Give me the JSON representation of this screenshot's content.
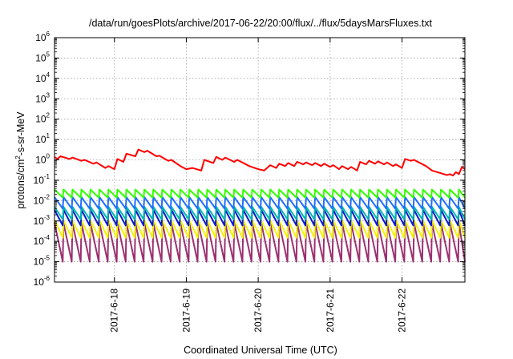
{
  "chart_data": {
    "type": "line",
    "title": "/data/run/goesPlots/archive/2017-06-22/20:00/flux/../flux/5daysMarsFluxes.txt",
    "xlabel": "Coordinated Universal Time (UTC)",
    "ylabel_base": "protons/cm",
    "ylabel_sup": "2",
    "ylabel_rest": "-s-sr-MeV",
    "ylabel": "protons/cm2-s-sr-MeV",
    "yscale": "log",
    "ylim": [
      1e-06,
      1000000.0
    ],
    "yticks": [
      {
        "base": "10",
        "exp": "-6"
      },
      {
        "base": "10",
        "exp": "-5"
      },
      {
        "base": "10",
        "exp": "-4"
      },
      {
        "base": "10",
        "exp": "-3"
      },
      {
        "base": "10",
        "exp": "-2"
      },
      {
        "base": "10",
        "exp": "-1"
      },
      {
        "base": "10",
        "exp": "0"
      },
      {
        "base": "10",
        "exp": "1"
      },
      {
        "base": "10",
        "exp": "2"
      },
      {
        "base": "10",
        "exp": "3"
      },
      {
        "base": "10",
        "exp": "4"
      },
      {
        "base": "10",
        "exp": "5"
      },
      {
        "base": "10",
        "exp": "6"
      }
    ],
    "xlim": [
      "2017-06-17 04:00",
      "2017-06-22 21:00"
    ],
    "xticks": [
      "2017-6-18",
      "2017-6-19",
      "2017-6-20",
      "2017-6-21",
      "2017-6-22"
    ],
    "grid": true,
    "legend": "none",
    "series": [
      {
        "color": "#ff0000",
        "kind": "ramp",
        "points": [
          [
            "2017-06-17 04:00",
            1.4
          ],
          [
            "2017-06-17 05:00",
            1.1
          ],
          [
            "2017-06-17 06:00",
            1.5
          ],
          [
            "2017-06-17 09:00",
            1.1
          ],
          [
            "2017-06-17 10:00",
            1.3
          ],
          [
            "2017-06-17 13:00",
            0.9
          ],
          [
            "2017-06-17 14:00",
            1.0
          ],
          [
            "2017-06-17 17:00",
            0.65
          ],
          [
            "2017-06-17 18:00",
            0.75
          ],
          [
            "2017-06-17 21:00",
            0.4
          ],
          [
            "2017-06-17 22:00",
            0.5
          ],
          [
            "2017-06-18 00:00",
            0.35
          ],
          [
            "2017-06-18 01:00",
            1.1
          ],
          [
            "2017-06-18 03:00",
            0.8
          ],
          [
            "2017-06-18 04:00",
            2.0
          ],
          [
            "2017-06-18 07:00",
            1.5
          ],
          [
            "2017-06-18 08:00",
            3.2
          ],
          [
            "2017-06-18 10:00",
            2.4
          ],
          [
            "2017-06-18 11:00",
            2.8
          ],
          [
            "2017-06-18 14:00",
            1.5
          ],
          [
            "2017-06-18 15:00",
            1.6
          ],
          [
            "2017-06-18 18:00",
            0.9
          ],
          [
            "2017-06-18 19:00",
            1.0
          ],
          [
            "2017-06-18 22:00",
            0.5
          ],
          [
            "2017-06-19 00:00",
            0.35
          ],
          [
            "2017-06-19 02:00",
            0.4
          ],
          [
            "2017-06-19 05:00",
            0.3
          ],
          [
            "2017-06-19 06:00",
            1.0
          ],
          [
            "2017-06-19 09:00",
            0.7
          ],
          [
            "2017-06-19 10:00",
            1.4
          ],
          [
            "2017-06-19 12:00",
            1.0
          ],
          [
            "2017-06-19 13:00",
            1.3
          ],
          [
            "2017-06-19 16:00",
            0.8
          ],
          [
            "2017-06-19 17:00",
            1.0
          ],
          [
            "2017-06-19 21:00",
            0.5
          ],
          [
            "2017-06-20 00:00",
            0.35
          ],
          [
            "2017-06-20 02:00",
            0.3
          ],
          [
            "2017-06-20 04:00",
            0.55
          ],
          [
            "2017-06-20 06:00",
            0.4
          ],
          [
            "2017-06-20 07:00",
            0.65
          ],
          [
            "2017-06-20 09:00",
            0.5
          ],
          [
            "2017-06-20 10:00",
            0.7
          ],
          [
            "2017-06-20 12:00",
            0.5
          ],
          [
            "2017-06-20 13:00",
            0.8
          ],
          [
            "2017-06-20 15:00",
            0.6
          ],
          [
            "2017-06-20 16:00",
            0.75
          ],
          [
            "2017-06-20 18:00",
            0.55
          ],
          [
            "2017-06-20 19:00",
            0.7
          ],
          [
            "2017-06-20 21:00",
            0.5
          ],
          [
            "2017-06-20 22:00",
            0.65
          ],
          [
            "2017-06-21 00:00",
            0.45
          ],
          [
            "2017-06-21 01:00",
            0.55
          ],
          [
            "2017-06-21 03:00",
            0.35
          ],
          [
            "2017-06-21 04:00",
            0.5
          ],
          [
            "2017-06-21 06:00",
            0.35
          ],
          [
            "2017-06-21 07:00",
            0.45
          ],
          [
            "2017-06-21 09:00",
            0.3
          ],
          [
            "2017-06-21 10:00",
            0.8
          ],
          [
            "2017-06-21 12:00",
            0.6
          ],
          [
            "2017-06-21 13:00",
            0.9
          ],
          [
            "2017-06-21 15:00",
            0.65
          ],
          [
            "2017-06-21 16:00",
            0.85
          ],
          [
            "2017-06-21 18:00",
            0.6
          ],
          [
            "2017-06-21 19:00",
            0.75
          ],
          [
            "2017-06-21 21:00",
            0.5
          ],
          [
            "2017-06-21 22:00",
            0.6
          ],
          [
            "2017-06-22 00:00",
            0.4
          ],
          [
            "2017-06-22 01:00",
            1.1
          ],
          [
            "2017-06-22 03:00",
            0.9
          ],
          [
            "2017-06-22 04:00",
            1.0
          ],
          [
            "2017-06-22 08:00",
            0.5
          ],
          [
            "2017-06-22 10:00",
            0.3
          ],
          [
            "2017-06-22 13:00",
            0.22
          ],
          [
            "2017-06-22 15:00",
            0.18
          ],
          [
            "2017-06-22 16:00",
            0.2
          ],
          [
            "2017-06-22 17:00",
            0.17
          ],
          [
            "2017-06-22 18:00",
            0.25
          ],
          [
            "2017-06-22 19:00",
            0.2
          ],
          [
            "2017-06-22 20:00",
            0.45
          ],
          [
            "2017-06-22 21:00",
            0.35
          ]
        ]
      },
      {
        "color": "#33ff00",
        "kind": "sawtooth",
        "start": "2017-06-17 04:00",
        "end": "2017-06-22 21:00",
        "period_hours": 3,
        "high": 0.035,
        "low": 0.014
      },
      {
        "color": "#1f6fff",
        "kind": "sawtooth",
        "start": "2017-06-17 04:00",
        "end": "2017-06-22 21:00",
        "period_hours": 3,
        "high": 0.015,
        "low": 0.004
      },
      {
        "color": "#00b8b0",
        "kind": "sawtooth",
        "start": "2017-06-17 04:00",
        "end": "2017-06-22 21:00",
        "period_hours": 3,
        "high": 0.005,
        "low": 0.0012
      },
      {
        "color": "#0a1acc",
        "kind": "sawtooth",
        "start": "2017-06-17 04:00",
        "end": "2017-06-22 21:00",
        "period_hours": 3,
        "high": 0.0035,
        "low": 0.0006
      },
      {
        "color": "#f2f20a",
        "kind": "sawtooth",
        "start": "2017-06-17 04:00",
        "end": "2017-06-22 21:00",
        "period_hours": 3,
        "high": 0.0011,
        "low": 0.00015
      },
      {
        "color": "#9c3070",
        "kind": "sawtooth",
        "start": "2017-06-17 04:00",
        "end": "2017-06-22 21:00",
        "period_hours": 3,
        "high": 0.0008,
        "low": 1e-05
      }
    ]
  }
}
